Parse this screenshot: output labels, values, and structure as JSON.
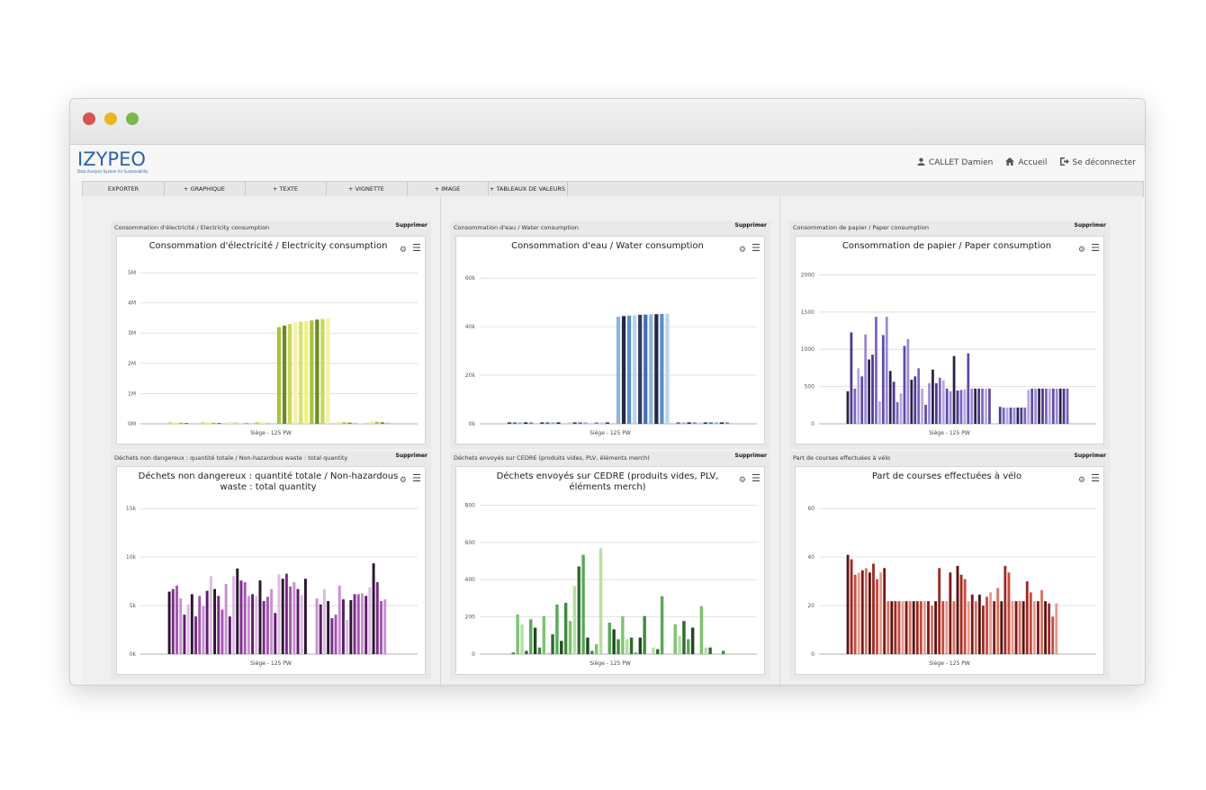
{
  "header": {
    "logo_text": "IZYPEO",
    "logo_tagline": "Data Analysis System for Sustainability",
    "user_name": "CALLET Damien",
    "home_label": "Accueil",
    "logout_label": "Se déconnecter"
  },
  "toolbar": {
    "items": [
      "EXPORTER",
      "+ GRAPHIQUE",
      "+ TEXTE",
      "+ VIGNETTE",
      "+ IMAGE",
      "+ TABLEAUX DE VALEURS"
    ]
  },
  "widgets": [
    {
      "header": "Consommation d'électricité / Electricity consumption",
      "delete_label": "Supprimer"
    },
    {
      "header": "Consommation d'eau / Water consumption",
      "delete_label": "Supprimer"
    },
    {
      "header": "Consommation de papier / Paper consumption",
      "delete_label": "Supprimer"
    },
    {
      "header": "Déchets non dangereux : quantité totale / Non-hazardous waste : total quantity",
      "delete_label": "Supprimer"
    },
    {
      "header": "Déchets envoyés sur CEDRE (produits vides, PLV, éléments merch)",
      "delete_label": "Supprimer"
    },
    {
      "header": "Part de courses effectuées à vélo",
      "delete_label": "Supprimer"
    }
  ],
  "chart_data": [
    {
      "type": "bar",
      "title": "Consommation d'électricité / Electricity consumption",
      "xlabel": "Siège - 125 PW",
      "ylim": [
        0,
        5000000
      ],
      "y_ticks": [
        "0M",
        "1M",
        "2M",
        "3M",
        "4M",
        "5M"
      ],
      "colors": [
        "#d9e36a",
        "#f3f07a",
        "#a8c43c",
        "#6e8a22",
        "#c6d95a",
        "#f5f2a0"
      ],
      "values": [
        60000,
        50000,
        40000,
        30000,
        20000,
        0,
        60000,
        50000,
        40000,
        30000,
        0,
        60000,
        50000,
        40000,
        30000,
        0,
        60000,
        50000,
        40000,
        0,
        3200000,
        3250000,
        3300000,
        3350000,
        3380000,
        3400000,
        3420000,
        3450000,
        3470000,
        3490000,
        0,
        60000,
        50000,
        40000,
        30000,
        20000,
        0,
        80000,
        70000,
        50000,
        40000
      ]
    },
    {
      "type": "bar",
      "title": "Consommation d'eau / Water consumption",
      "xlabel": "Siège - 125 PW",
      "ylim": [
        0,
        70000
      ],
      "y_ticks": [
        "0k",
        "20k",
        "40k",
        "60k"
      ],
      "colors": [
        "#2c3e66",
        "#3f6fb0",
        "#8fb3dd",
        "#1f2a44",
        "#5c8fcb",
        "#bcd3ee"
      ],
      "values": [
        700,
        700,
        700,
        700,
        700,
        0,
        700,
        700,
        700,
        700,
        0,
        700,
        700,
        700,
        700,
        0,
        700,
        700,
        700,
        0,
        51500,
        51800,
        52000,
        52200,
        52400,
        52500,
        52600,
        52700,
        52800,
        52900,
        0,
        700,
        700,
        700,
        700,
        700,
        700,
        700,
        700,
        700,
        700
      ]
    },
    {
      "type": "bar",
      "title": "Consommation de papier / Paper consumption",
      "xlabel": "Siège - 125 PW",
      "ylim": [
        0,
        2200
      ],
      "y_ticks": [
        "0",
        "500",
        "1000",
        "1500",
        "2000"
      ],
      "colors": [
        "#2a2147",
        "#4b3b8f",
        "#7b64c2",
        "#b6a7e0",
        "#5e4aa8",
        "#9c8ad4"
      ],
      "values": [
        480,
        1350,
        520,
        820,
        700,
        1320,
        950,
        1020,
        1580,
        330,
        1310,
        1580,
        780,
        620,
        320,
        450,
        1150,
        1250,
        650,
        700,
        820,
        520,
        280,
        600,
        800,
        600,
        680,
        640,
        520,
        480,
        1000,
        490,
        500,
        510,
        1040,
        520,
        520,
        520,
        520,
        520,
        520,
        0,
        0,
        250,
        240,
        240,
        240,
        240,
        240,
        240,
        240,
        500,
        520,
        520,
        520,
        520,
        520,
        520,
        520,
        520,
        520,
        520,
        520
      ]
    },
    {
      "type": "bar",
      "title": "Déchets non dangereux : quantité totale / Non-hazardous waste : total quantity",
      "xlabel": "Siège - 125 PW",
      "ylim": [
        0,
        17000
      ],
      "y_ticks": [
        "0k",
        "5k",
        "10k",
        "15k"
      ],
      "colors": [
        "#2b1630",
        "#7b2d88",
        "#a455b3",
        "#c98fd3",
        "#5a1f68",
        "#e0b8e6"
      ],
      "values": [
        7300,
        7600,
        8000,
        6500,
        4600,
        5800,
        7000,
        4400,
        6800,
        5600,
        7400,
        9100,
        7600,
        6800,
        5200,
        8200,
        4400,
        9100,
        10000,
        8600,
        8400,
        6800,
        7000,
        6800,
        8600,
        6200,
        6700,
        7600,
        4800,
        9300,
        8800,
        9400,
        7900,
        8400,
        7600,
        6900,
        8800,
        0,
        0,
        6500,
        5800,
        7600,
        6200,
        4200,
        4600,
        8000,
        6400,
        4000,
        6300,
        7000,
        7000,
        7100,
        6800,
        7800,
        10600,
        8400,
        6200,
        6400,
        0
      ]
    },
    {
      "type": "bar",
      "title": "Déchets envoyés sur CEDRE (produits vides, PLV, éléments merch)",
      "xlabel": "Siège - 125 PW",
      "ylim": [
        0,
        900
      ],
      "y_ticks": [
        "0",
        "200",
        "400",
        "600",
        "800"
      ],
      "colors": [
        "#1f4a1f",
        "#3e8a3e",
        "#7cc46e",
        "#b3e0a4",
        "#2e6b2e",
        "#5aa85a"
      ],
      "values": [
        0,
        10,
        240,
        180,
        20,
        210,
        160,
        40,
        230,
        10,
        120,
        300,
        80,
        310,
        200,
        410,
        530,
        600,
        100,
        20,
        60,
        640,
        0,
        190,
        150,
        90,
        230,
        90,
        100,
        10,
        100,
        230,
        0,
        40,
        30,
        350,
        0,
        0,
        180,
        110,
        200,
        90,
        160,
        0,
        290,
        40,
        40,
        0,
        0,
        20,
        0
      ]
    },
    {
      "type": "bar",
      "title": "Part de courses effectuées à vélo",
      "xlabel": "Siège - 125 PW",
      "ylim": [
        0,
        66
      ],
      "y_ticks": [
        "0",
        "20",
        "40",
        "60"
      ],
      "colors": [
        "#5c1212",
        "#9c2a22",
        "#c94a3c",
        "#e79a8c",
        "#7a1a1a",
        "#d8735f"
      ],
      "values": [
        45,
        43,
        36,
        37,
        38,
        39,
        37,
        41,
        34,
        37,
        39,
        24,
        24,
        24,
        24,
        24,
        24,
        24,
        24,
        24,
        24,
        24,
        24,
        22,
        24,
        39,
        24,
        24,
        37,
        24,
        40,
        36,
        34,
        24,
        27,
        24,
        27,
        22,
        26,
        28,
        24,
        30,
        24,
        40,
        37,
        24,
        24,
        24,
        24,
        33,
        28,
        24,
        24,
        29,
        24,
        23,
        17,
        23,
        0,
        0,
        0
      ]
    }
  ]
}
